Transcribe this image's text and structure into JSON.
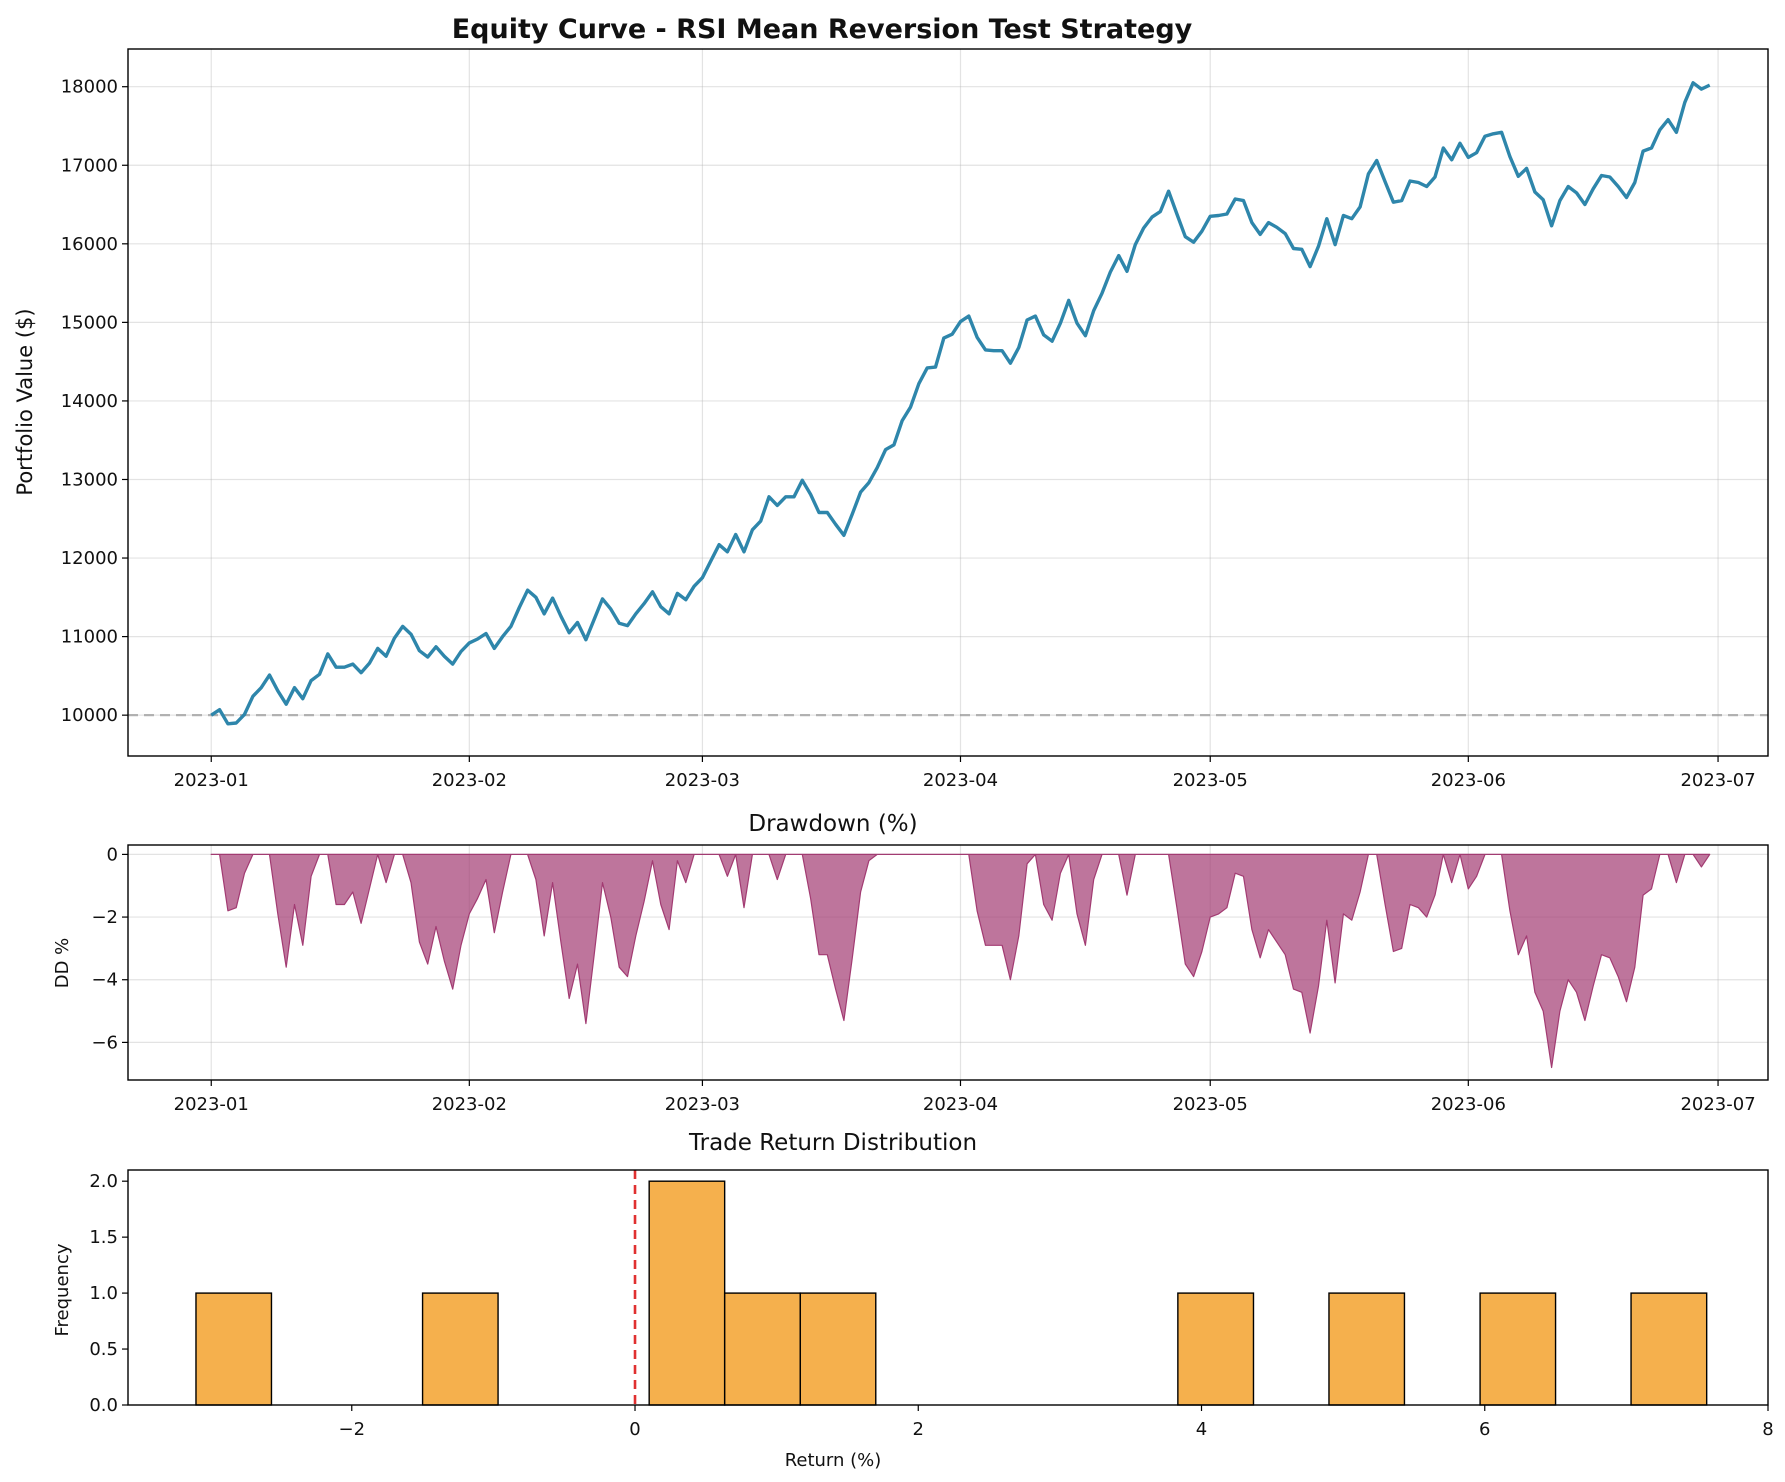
{
  "colors": {
    "equity_line": "#2e86ab",
    "drawdown_fill": "#a23b72",
    "hist_fill": "#f18f01",
    "baseline": "#888888",
    "zero_line": "#e03030"
  },
  "chart_data": [
    {
      "type": "line",
      "title": "Equity Curve - RSI Mean Reversion Test Strategy",
      "xlabel": "",
      "ylabel": "Portfolio Value ($)",
      "ylim": [
        9480,
        18480
      ],
      "xlim": [
        "2022-12-22",
        "2023-07-07"
      ],
      "yticks": [
        10000,
        11000,
        12000,
        13000,
        14000,
        15000,
        16000,
        17000,
        18000
      ],
      "xticks": [
        "2023-01",
        "2023-02",
        "2023-03",
        "2023-04",
        "2023-05",
        "2023-06",
        "2023-07"
      ],
      "grid": true,
      "baseline": 10000,
      "series": [
        {
          "dates": [
            "2023-01-01",
            "2023-01-02",
            "2023-01-03",
            "2023-01-04",
            "2023-01-05",
            "2023-01-06",
            "2023-01-07",
            "2023-01-08",
            "2023-01-09",
            "2023-01-10",
            "2023-01-11",
            "2023-01-12",
            "2023-01-13",
            "2023-01-14",
            "2023-01-15",
            "2023-01-16",
            "2023-01-17",
            "2023-01-18",
            "2023-01-19",
            "2023-01-20",
            "2023-01-21",
            "2023-01-22",
            "2023-01-23",
            "2023-01-24",
            "2023-01-25",
            "2023-01-26",
            "2023-01-27",
            "2023-01-28",
            "2023-01-29",
            "2023-01-30",
            "2023-01-31",
            "2023-02-01",
            "2023-02-02",
            "2023-02-03",
            "2023-02-04",
            "2023-02-05",
            "2023-02-06",
            "2023-02-07",
            "2023-02-08",
            "2023-02-09",
            "2023-02-10",
            "2023-02-11",
            "2023-02-12",
            "2023-02-13",
            "2023-02-14",
            "2023-02-15",
            "2023-02-16",
            "2023-02-17",
            "2023-02-18",
            "2023-02-19",
            "2023-02-20",
            "2023-02-21",
            "2023-02-22",
            "2023-02-23",
            "2023-02-24",
            "2023-02-25",
            "2023-02-26",
            "2023-02-27",
            "2023-02-28",
            "2023-03-01",
            "2023-03-02",
            "2023-03-03",
            "2023-03-04",
            "2023-03-05",
            "2023-03-06",
            "2023-03-07",
            "2023-03-08",
            "2023-03-09",
            "2023-03-10",
            "2023-03-11",
            "2023-03-12",
            "2023-03-13",
            "2023-03-14",
            "2023-03-15",
            "2023-03-16",
            "2023-03-17",
            "2023-03-18",
            "2023-03-19",
            "2023-03-20",
            "2023-03-21",
            "2023-03-22",
            "2023-03-23",
            "2023-03-24",
            "2023-03-25",
            "2023-03-26",
            "2023-03-27",
            "2023-03-28",
            "2023-03-29",
            "2023-03-30",
            "2023-03-31",
            "2023-04-01",
            "2023-04-02",
            "2023-04-03",
            "2023-04-04",
            "2023-04-05",
            "2023-04-06",
            "2023-04-07",
            "2023-04-08",
            "2023-04-09",
            "2023-04-10",
            "2023-04-11",
            "2023-04-12",
            "2023-04-13",
            "2023-04-14",
            "2023-04-15",
            "2023-04-16",
            "2023-04-17",
            "2023-04-18",
            "2023-04-19",
            "2023-04-20",
            "2023-04-21",
            "2023-04-22",
            "2023-04-23",
            "2023-04-24",
            "2023-04-25",
            "2023-04-26",
            "2023-04-27",
            "2023-04-28",
            "2023-04-29",
            "2023-04-30",
            "2023-05-01",
            "2023-05-02",
            "2023-05-03",
            "2023-05-04",
            "2023-05-05",
            "2023-05-06",
            "2023-05-07",
            "2023-05-08",
            "2023-05-09",
            "2023-05-10",
            "2023-05-11",
            "2023-05-12",
            "2023-05-13",
            "2023-05-14",
            "2023-05-15",
            "2023-05-16",
            "2023-05-17",
            "2023-05-18",
            "2023-05-19",
            "2023-05-20",
            "2023-05-21",
            "2023-05-22",
            "2023-05-23",
            "2023-05-24",
            "2023-05-25",
            "2023-05-26",
            "2023-05-27",
            "2023-05-28",
            "2023-05-29",
            "2023-05-30",
            "2023-05-31",
            "2023-06-01",
            "2023-06-02",
            "2023-06-03",
            "2023-06-04",
            "2023-06-05",
            "2023-06-06",
            "2023-06-07",
            "2023-06-08",
            "2023-06-09",
            "2023-06-10",
            "2023-06-11",
            "2023-06-12",
            "2023-06-13",
            "2023-06-14",
            "2023-06-15",
            "2023-06-16",
            "2023-06-17",
            "2023-06-18",
            "2023-06-19",
            "2023-06-20",
            "2023-06-21",
            "2023-06-22",
            "2023-06-23",
            "2023-06-24",
            "2023-06-25",
            "2023-06-26",
            "2023-06-27",
            "2023-06-28",
            "2023-06-29",
            "2023-06-30"
          ],
          "values": [
            10000,
            10070,
            9890,
            9900,
            10010,
            10240,
            10350,
            10510,
            10310,
            10140,
            10350,
            10210,
            10440,
            10520,
            10780,
            10610,
            10610,
            10650,
            10540,
            10660,
            10850,
            10750,
            10980,
            11130,
            11030,
            10820,
            10740,
            10870,
            10750,
            10650,
            10810,
            10920,
            10970,
            11040,
            10850,
            11000,
            11130,
            11370,
            11590,
            11500,
            11290,
            11490,
            11260,
            11050,
            11180,
            10960,
            11220,
            11480,
            11350,
            11170,
            11140,
            11290,
            11420,
            11570,
            11380,
            11290,
            11550,
            11470,
            11640,
            11750,
            11960,
            12170,
            12080,
            12300,
            12080,
            12360,
            12470,
            12780,
            12670,
            12780,
            12780,
            12990,
            12810,
            12580,
            12580,
            12430,
            12290,
            12560,
            12840,
            12960,
            13150,
            13380,
            13440,
            13750,
            13920,
            14220,
            14420,
            14430,
            14800,
            14850,
            15010,
            15080,
            14810,
            14650,
            14640,
            14640,
            14480,
            14680,
            15030,
            15080,
            14840,
            14760,
            14990,
            15280,
            14990,
            14830,
            15150,
            15370,
            15640,
            15850,
            15650,
            15990,
            16200,
            16340,
            16410,
            16670,
            16380,
            16090,
            16020,
            16160,
            16350,
            16360,
            16380,
            16570,
            16550,
            16270,
            16120,
            16270,
            16210,
            16130,
            15940,
            15930,
            15710,
            15970,
            16320,
            15990,
            16360,
            16320,
            16470,
            16890,
            17060,
            16790,
            16530,
            16550,
            16800,
            16780,
            16730,
            16850,
            17220,
            17070,
            17280,
            17100,
            17160,
            17370,
            17400,
            17420,
            17110,
            16860,
            16960,
            16660,
            16560,
            16230,
            16550,
            16730,
            16650,
            16500,
            16700,
            16870,
            16850,
            16730,
            16590,
            16780,
            17180,
            17220,
            17450,
            17580,
            17420,
            17800,
            18050,
            17970,
            18020
          ]
        }
      ]
    },
    {
      "type": "area",
      "title": "Drawdown (%)",
      "xlabel": "",
      "ylabel": "DD %",
      "ylim": [
        -7.2,
        0.3
      ],
      "xlim": [
        "2022-12-22",
        "2023-07-07"
      ],
      "yticks": [
        0,
        -2,
        -4,
        -6
      ],
      "ytick_labels": [
        "0",
        "−2",
        "−4",
        "−6"
      ],
      "xticks": [
        "2023-01",
        "2023-02",
        "2023-03",
        "2023-04",
        "2023-05",
        "2023-06",
        "2023-07"
      ],
      "grid": true,
      "series": [
        {
          "dates": [
            "2023-01-01",
            "2023-01-02",
            "2023-01-03",
            "2023-01-04",
            "2023-01-05",
            "2023-01-06",
            "2023-01-07",
            "2023-01-08",
            "2023-01-09",
            "2023-01-10",
            "2023-01-11",
            "2023-01-12",
            "2023-01-13",
            "2023-01-14",
            "2023-01-15",
            "2023-01-16",
            "2023-01-17",
            "2023-01-18",
            "2023-01-19",
            "2023-01-20",
            "2023-01-21",
            "2023-01-22",
            "2023-01-23",
            "2023-01-24",
            "2023-01-25",
            "2023-01-26",
            "2023-01-27",
            "2023-01-28",
            "2023-01-29",
            "2023-01-30",
            "2023-01-31",
            "2023-02-01",
            "2023-02-02",
            "2023-02-03",
            "2023-02-04",
            "2023-02-05",
            "2023-02-06",
            "2023-02-07",
            "2023-02-08",
            "2023-02-09",
            "2023-02-10",
            "2023-02-11",
            "2023-02-12",
            "2023-02-13",
            "2023-02-14",
            "2023-02-15",
            "2023-02-16",
            "2023-02-17",
            "2023-02-18",
            "2023-02-19",
            "2023-02-20",
            "2023-02-21",
            "2023-02-22",
            "2023-02-23",
            "2023-02-24",
            "2023-02-25",
            "2023-02-26",
            "2023-02-27",
            "2023-02-28",
            "2023-03-01",
            "2023-03-02",
            "2023-03-03",
            "2023-03-04",
            "2023-03-05",
            "2023-03-06",
            "2023-03-07",
            "2023-03-08",
            "2023-03-09",
            "2023-03-10",
            "2023-03-11",
            "2023-03-12",
            "2023-03-13",
            "2023-03-14",
            "2023-03-15",
            "2023-03-16",
            "2023-03-17",
            "2023-03-18",
            "2023-03-19",
            "2023-03-20",
            "2023-03-21",
            "2023-03-22",
            "2023-03-23",
            "2023-03-24",
            "2023-03-25",
            "2023-03-26",
            "2023-03-27",
            "2023-03-28",
            "2023-03-29",
            "2023-03-30",
            "2023-03-31",
            "2023-04-01",
            "2023-04-02",
            "2023-04-03",
            "2023-04-04",
            "2023-04-05",
            "2023-04-06",
            "2023-04-07",
            "2023-04-08",
            "2023-04-09",
            "2023-04-10",
            "2023-04-11",
            "2023-04-12",
            "2023-04-13",
            "2023-04-14",
            "2023-04-15",
            "2023-04-16",
            "2023-04-17",
            "2023-04-18",
            "2023-04-19",
            "2023-04-20",
            "2023-04-21",
            "2023-04-22",
            "2023-04-23",
            "2023-04-24",
            "2023-04-25",
            "2023-04-26",
            "2023-04-27",
            "2023-04-28",
            "2023-04-29",
            "2023-04-30",
            "2023-05-01",
            "2023-05-02",
            "2023-05-03",
            "2023-05-04",
            "2023-05-05",
            "2023-05-06",
            "2023-05-07",
            "2023-05-08",
            "2023-05-09",
            "2023-05-10",
            "2023-05-11",
            "2023-05-12",
            "2023-05-13",
            "2023-05-14",
            "2023-05-15",
            "2023-05-16",
            "2023-05-17",
            "2023-05-18",
            "2023-05-19",
            "2023-05-20",
            "2023-05-21",
            "2023-05-22",
            "2023-05-23",
            "2023-05-24",
            "2023-05-25",
            "2023-05-26",
            "2023-05-27",
            "2023-05-28",
            "2023-05-29",
            "2023-05-30",
            "2023-05-31",
            "2023-06-01",
            "2023-06-02",
            "2023-06-03",
            "2023-06-04",
            "2023-06-05",
            "2023-06-06",
            "2023-06-07",
            "2023-06-08",
            "2023-06-09",
            "2023-06-10",
            "2023-06-11",
            "2023-06-12",
            "2023-06-13",
            "2023-06-14",
            "2023-06-15",
            "2023-06-16",
            "2023-06-17",
            "2023-06-18",
            "2023-06-19",
            "2023-06-20",
            "2023-06-21",
            "2023-06-22",
            "2023-06-23",
            "2023-06-24",
            "2023-06-25",
            "2023-06-26",
            "2023-06-27",
            "2023-06-28",
            "2023-06-29",
            "2023-06-30"
          ],
          "values": [
            0,
            0,
            -1.8,
            -1.7,
            -0.6,
            0,
            0,
            0,
            -1.9,
            -3.6,
            -1.6,
            -2.9,
            -0.7,
            0,
            0,
            -1.6,
            -1.6,
            -1.2,
            -2.2,
            -1.1,
            0,
            -0.9,
            0,
            0,
            -0.9,
            -2.8,
            -3.5,
            -2.3,
            -3.4,
            -4.3,
            -2.9,
            -1.9,
            -1.4,
            -0.8,
            -2.5,
            -1.2,
            0,
            0,
            0,
            -0.8,
            -2.6,
            -0.9,
            -2.8,
            -4.6,
            -3.5,
            -5.4,
            -3.2,
            -0.9,
            -2.0,
            -3.6,
            -3.9,
            -2.6,
            -1.5,
            -0.2,
            -1.6,
            -2.4,
            -0.2,
            -0.9,
            0,
            0,
            0,
            0,
            -0.7,
            0,
            -1.7,
            0,
            0,
            0,
            -0.8,
            0,
            0,
            0,
            -1.4,
            -3.2,
            -3.2,
            -4.3,
            -5.3,
            -3.3,
            -1.2,
            -0.2,
            0,
            0,
            0,
            0,
            0,
            0,
            0,
            0,
            0,
            0,
            0,
            0,
            -1.8,
            -2.9,
            -2.9,
            -2.9,
            -4.0,
            -2.6,
            -0.3,
            0,
            -1.6,
            -2.1,
            -0.6,
            0,
            -1.9,
            -2.9,
            -0.8,
            0,
            0,
            0,
            -1.3,
            0,
            0,
            0,
            0,
            0,
            -1.7,
            -3.5,
            -3.9,
            -3.1,
            -2.0,
            -1.9,
            -1.7,
            -0.6,
            -0.7,
            -2.4,
            -3.3,
            -2.4,
            -2.8,
            -3.2,
            -4.3,
            -4.4,
            -5.7,
            -4.2,
            -2.1,
            -4.1,
            -1.9,
            -2.1,
            -1.2,
            0,
            0,
            -1.6,
            -3.1,
            -3.0,
            -1.6,
            -1.7,
            -2.0,
            -1.3,
            0,
            -0.9,
            0,
            -1.1,
            -0.7,
            0,
            0,
            0,
            -1.8,
            -3.2,
            -2.6,
            -4.4,
            -5.0,
            -6.8,
            -5.0,
            -4.0,
            -4.4,
            -5.3,
            -4.2,
            -3.2,
            -3.3,
            -3.9,
            -4.7,
            -3.6,
            -1.3,
            -1.1,
            0,
            0,
            -0.9,
            0,
            0,
            -0.4,
            0
          ]
        }
      ]
    },
    {
      "type": "bar",
      "title": "Trade Return Distribution",
      "xlabel": "Return (%)",
      "ylabel": "Frequency",
      "ylim": [
        0,
        2.1
      ],
      "xlim": [
        -3.58,
        8.0
      ],
      "yticks": [
        0.0,
        0.5,
        1.0,
        1.5,
        2.0
      ],
      "ytick_labels": [
        "0.0",
        "0.5",
        "1.0",
        "1.5",
        "2.0"
      ],
      "xticks": [
        -2,
        0,
        2,
        4,
        6,
        8
      ],
      "xtick_labels": [
        "−2",
        "0",
        "2",
        "4",
        "6",
        "8"
      ],
      "bin_width": 0.533,
      "bins": [
        {
          "x0": -3.1,
          "x1": -2.567,
          "count": 1
        },
        {
          "x0": -1.5,
          "x1": -0.967,
          "count": 1
        },
        {
          "x0": 0.1,
          "x1": 0.633,
          "count": 2
        },
        {
          "x0": 0.633,
          "x1": 1.167,
          "count": 1
        },
        {
          "x0": 1.167,
          "x1": 1.7,
          "count": 1
        },
        {
          "x0": 3.833,
          "x1": 4.367,
          "count": 1
        },
        {
          "x0": 4.9,
          "x1": 5.433,
          "count": 1
        },
        {
          "x0": 5.967,
          "x1": 6.5,
          "count": 1
        },
        {
          "x0": 7.033,
          "x1": 7.567,
          "count": 1
        }
      ],
      "zero_line": 0,
      "grid": false
    }
  ]
}
